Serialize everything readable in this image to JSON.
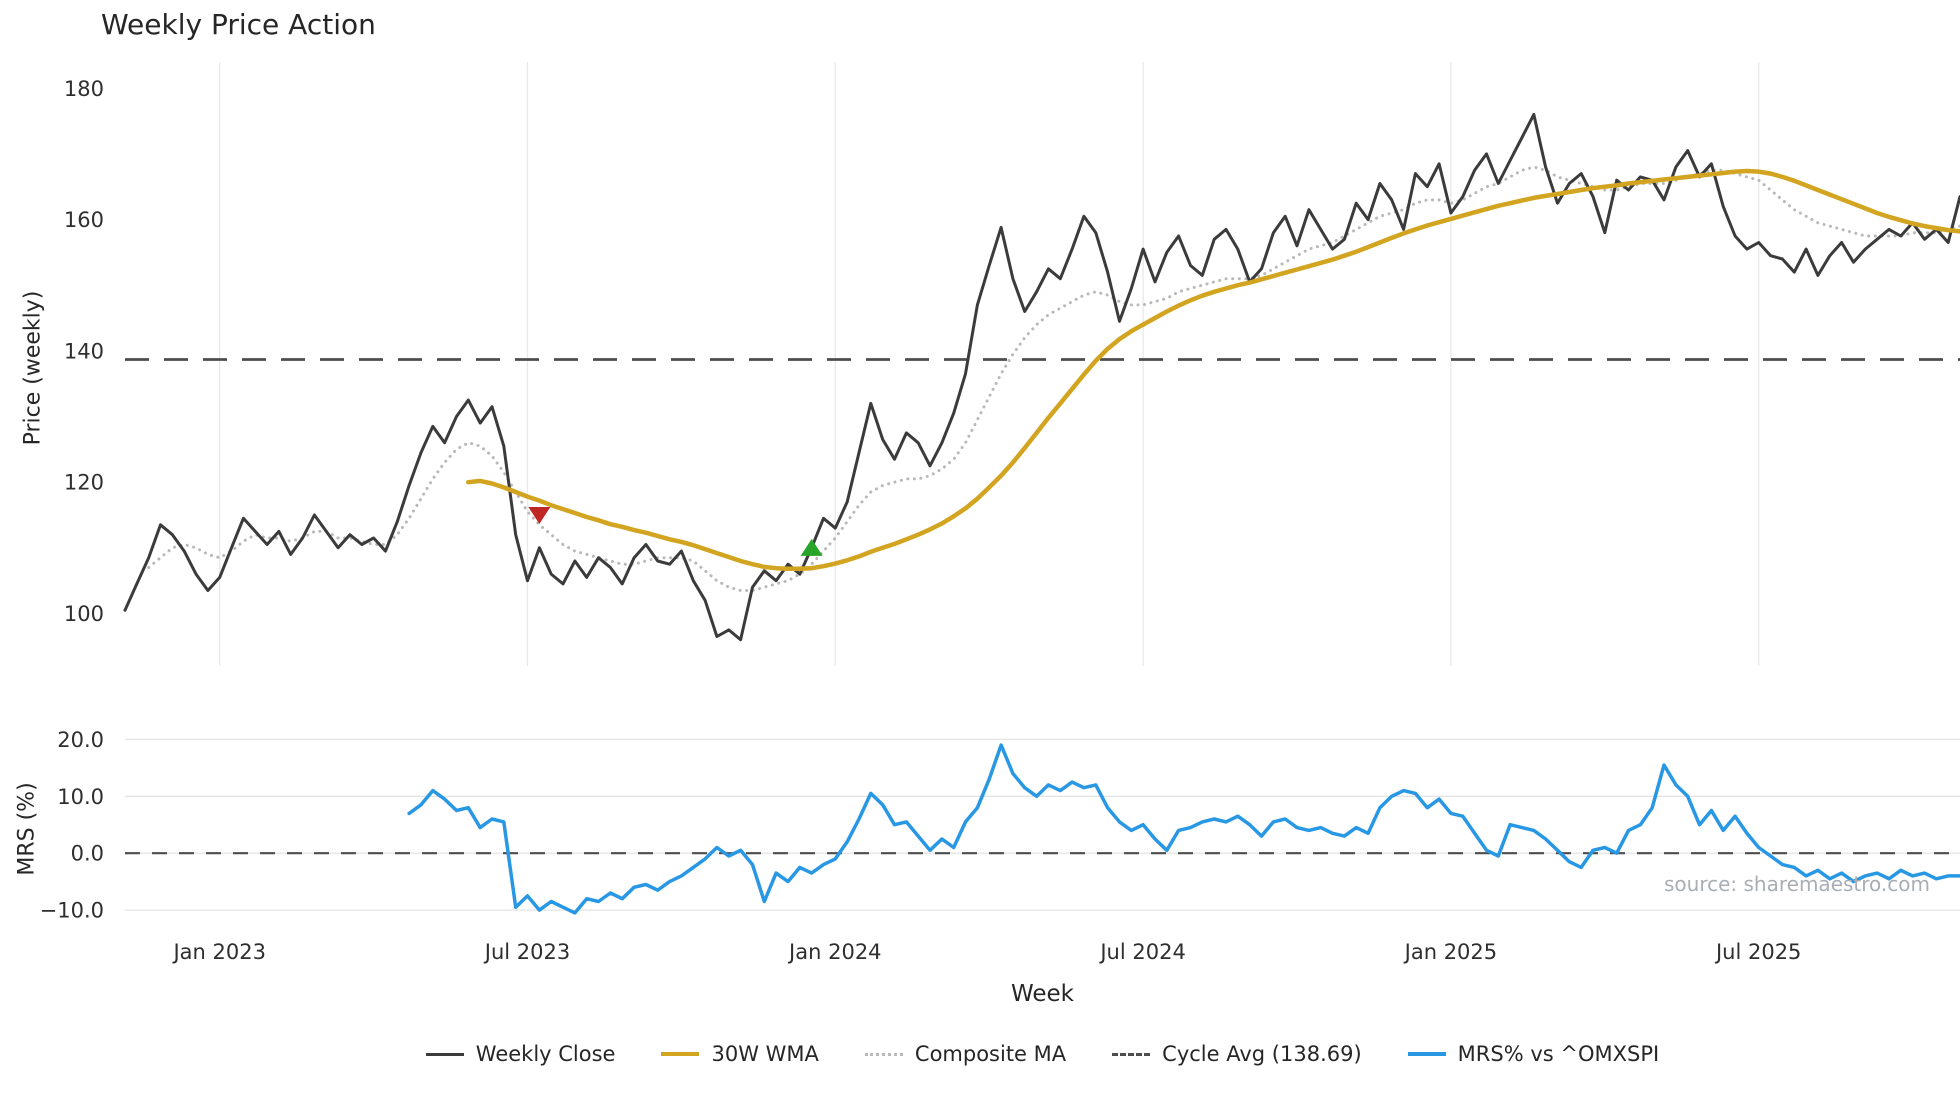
{
  "source_note": "source: sharemaestro.com",
  "legend": {
    "items": [
      {
        "label": "Weekly Close",
        "color": "#3b3b3b",
        "style": "solid"
      },
      {
        "label": "30W WMA",
        "color": "#d2a41f",
        "style": "solid"
      },
      {
        "label": "Composite MA",
        "color": "#b9b9b9",
        "style": "dotted"
      },
      {
        "label": "Cycle Avg (138.69)",
        "color": "#4d4d4d",
        "style": "dashed"
      },
      {
        "label": "MRS% vs ^OMXSPI",
        "color": "#2897e4",
        "style": "solid"
      }
    ]
  },
  "chart_data": [
    {
      "type": "line",
      "panel": "price",
      "title": "Weekly Price Action",
      "ylabel": "Price (weekly)",
      "ylim": [
        92,
        184
      ],
      "yticks": [
        100,
        120,
        140,
        160,
        180
      ],
      "grid": "vertical-only",
      "cycle_avg": {
        "label": "Cycle Avg (138.69)",
        "value": 138.69,
        "style": "dashed",
        "color": "#4d4d4d"
      },
      "x_axis": {
        "unit": "week",
        "total_weeks": 156,
        "ticks": [
          {
            "week": 8,
            "label": "Jan 2023"
          },
          {
            "week": 34,
            "label": "Jul 2023"
          },
          {
            "week": 60,
            "label": "Jan 2024"
          },
          {
            "week": 86,
            "label": "Jul 2024"
          },
          {
            "week": 112,
            "label": "Jan 2025"
          },
          {
            "week": 138,
            "label": "Jul 2025"
          }
        ]
      },
      "series": [
        {
          "name": "Weekly Close",
          "color": "#3b3b3b",
          "style": "solid",
          "width": 3,
          "start_week": 0,
          "values": [
            100.5,
            104.5,
            108.5,
            113.5,
            112,
            109.5,
            106,
            103.5,
            105.5,
            110,
            114.5,
            112.5,
            110.5,
            112.5,
            109,
            111.5,
            115,
            112.5,
            110,
            112,
            110.5,
            111.5,
            109.5,
            114,
            119.5,
            124.5,
            128.5,
            126,
            130,
            132.5,
            129,
            131.5,
            125.5,
            112,
            105,
            110,
            106,
            104.5,
            108,
            105.5,
            108.5,
            107,
            104.5,
            108.5,
            110.5,
            108,
            107.5,
            109.5,
            105,
            102,
            96.5,
            97.5,
            96,
            104,
            106.5,
            105,
            107.5,
            106,
            110,
            114.5,
            113,
            117,
            124.5,
            132,
            126.5,
            123.5,
            127.5,
            126,
            122.5,
            126,
            130.5,
            136.5,
            147,
            153,
            158.8,
            151,
            146,
            149,
            152.5,
            151,
            155.5,
            160.5,
            158,
            152,
            144.5,
            149.5,
            155.5,
            150.5,
            155,
            157.5,
            153,
            151.5,
            157,
            158.5,
            155.5,
            150.5,
            152.5,
            158,
            160.5,
            156,
            161.5,
            158.5,
            155.5,
            157,
            162.5,
            160,
            165.5,
            163,
            158.5,
            167,
            165,
            168.5,
            161,
            163.5,
            167.5,
            170,
            165.5,
            169,
            172.5,
            176,
            168,
            162.5,
            165.5,
            167,
            163.5,
            158,
            166,
            164.5,
            166.5,
            166,
            163,
            168,
            170.5,
            166.5,
            168.5,
            162,
            157.5,
            155.5,
            156.5,
            154.5,
            154,
            152,
            155.5,
            151.5,
            154.5,
            156.5,
            153.5,
            155.5,
            157,
            158.5,
            157.5,
            159.5,
            157,
            158.5,
            156.5,
            163.5
          ]
        },
        {
          "name": "30W WMA",
          "color": "#d2a41f",
          "style": "solid",
          "width": 4.5,
          "start_week": 29,
          "values": [
            120,
            120.2,
            119.8,
            119.2,
            118.5,
            117.8,
            117.2,
            116.5,
            115.9,
            115.3,
            114.7,
            114.2,
            113.6,
            113.2,
            112.7,
            112.3,
            111.8,
            111.3,
            110.9,
            110.4,
            109.8,
            109.2,
            108.6,
            108,
            107.5,
            107.1,
            106.9,
            106.8,
            106.8,
            106.9,
            107.2,
            107.6,
            108.1,
            108.7,
            109.4,
            110,
            110.6,
            111.3,
            112,
            112.8,
            113.7,
            114.8,
            116,
            117.5,
            119.2,
            121,
            123,
            125.2,
            127.5,
            129.8,
            132,
            134.2,
            136.4,
            138.5,
            140.3,
            141.8,
            143,
            144,
            145,
            146,
            146.9,
            147.7,
            148.4,
            149,
            149.5,
            150,
            150.4,
            150.9,
            151.4,
            151.9,
            152.4,
            152.9,
            153.4,
            153.9,
            154.5,
            155.1,
            155.8,
            156.5,
            157.2,
            157.9,
            158.5,
            159.1,
            159.6,
            160.1,
            160.6,
            161.1,
            161.6,
            162.1,
            162.5,
            162.9,
            163.3,
            163.6,
            163.9,
            164.2,
            164.5,
            164.8,
            165,
            165.2,
            165.5,
            165.7,
            165.9,
            166.1,
            166.3,
            166.5,
            166.7,
            166.9,
            167.1,
            167.3,
            167.4,
            167.3,
            167,
            166.5,
            165.9,
            165.2,
            164.5,
            163.8,
            163.1,
            162.4,
            161.7,
            161,
            160.4,
            159.9,
            159.4,
            159,
            158.7,
            158.4,
            158.2
          ]
        },
        {
          "name": "Composite MA",
          "color": "#b9b9b9",
          "style": "dotted",
          "width": 3,
          "start_week": 2,
          "values": [
            107,
            108.5,
            110,
            110.5,
            110,
            109,
            108.5,
            109.5,
            111,
            112,
            111.5,
            111.5,
            111,
            111.5,
            112.5,
            112.5,
            111.5,
            111.5,
            111,
            110.5,
            110.5,
            112,
            114.5,
            117.5,
            120.5,
            123,
            125,
            126,
            125.5,
            124,
            121.5,
            118.5,
            115.5,
            113.5,
            112,
            110.5,
            109.5,
            109,
            108.5,
            108,
            107.5,
            107.5,
            108,
            108.5,
            108.5,
            108.5,
            108,
            106.5,
            105,
            104,
            103.5,
            103.5,
            104,
            104.5,
            105,
            106,
            107.5,
            109.5,
            111.5,
            114,
            116.5,
            118.5,
            119.5,
            120,
            120.5,
            120.5,
            121,
            122,
            123.5,
            126,
            129.5,
            133,
            136.5,
            139.5,
            142,
            144,
            145.5,
            146.5,
            147.5,
            148.5,
            149,
            148.5,
            147.5,
            147,
            147,
            147.5,
            148,
            149,
            149.5,
            150,
            150.5,
            151,
            151,
            151,
            151.5,
            152.5,
            153.5,
            154.5,
            155.5,
            156,
            156.5,
            157.5,
            158.5,
            159.5,
            160.5,
            161,
            161.5,
            162.5,
            163,
            163,
            162.5,
            163,
            164,
            165,
            165.5,
            166.5,
            167.5,
            168,
            167.5,
            166.5,
            166,
            165.5,
            165,
            164.5,
            164.5,
            165,
            165.5,
            165.5,
            165.5,
            166,
            166.5,
            167,
            167.5,
            167.5,
            167,
            166.5,
            166,
            164.5,
            163,
            161.5,
            160.5,
            159.5,
            159,
            158.5,
            158,
            157.5,
            157.5,
            157.5,
            157.5,
            158,
            158,
            158,
            158.5,
            159
          ]
        }
      ],
      "markers": [
        {
          "name": "sell-signal",
          "shape": "triangle-down",
          "color": "#bf2626",
          "week": 35,
          "value": 115
        },
        {
          "name": "buy-signal",
          "shape": "triangle-up",
          "color": "#28a428",
          "week": 58,
          "value": 110
        }
      ]
    },
    {
      "type": "line",
      "panel": "mrs",
      "ylabel": "MRS (%)",
      "xlabel": "Week",
      "ylim": [
        -13.5,
        22
      ],
      "yticks": [
        -10,
        0,
        10,
        20
      ],
      "zero_line": {
        "value": 0,
        "style": "dashed",
        "color": "#4d4d4d"
      },
      "series": [
        {
          "name": "MRS% vs ^OMXSPI",
          "color": "#2897e4",
          "style": "solid",
          "width": 3.5,
          "start_week": 24,
          "values": [
            7,
            8.5,
            11,
            9.5,
            7.5,
            8,
            4.5,
            6,
            5.5,
            -9.5,
            -7.5,
            -10,
            -8.5,
            -9.5,
            -10.5,
            -8,
            -8.5,
            -7,
            -8,
            -6,
            -5.5,
            -6.5,
            -5,
            -4,
            -2.5,
            -1,
            1,
            -0.5,
            0.5,
            -2,
            -8.5,
            -3.5,
            -5,
            -2.5,
            -3.5,
            -2,
            -1,
            2,
            6,
            10.5,
            8.5,
            5,
            5.5,
            3,
            0.5,
            2.5,
            1,
            5.5,
            8,
            13,
            19,
            14,
            11.5,
            10,
            12,
            11,
            12.5,
            11.5,
            12,
            8,
            5.5,
            4,
            5,
            2.5,
            0.5,
            4,
            4.5,
            5.5,
            6,
            5.5,
            6.5,
            5,
            3,
            5.5,
            6,
            4.5,
            4,
            4.5,
            3.5,
            3,
            4.5,
            3.5,
            8,
            10,
            11,
            10.5,
            8,
            9.5,
            7,
            6.5,
            3.5,
            0.5,
            -0.5,
            5,
            4.5,
            4,
            2.5,
            0.5,
            -1.5,
            -2.5,
            0.5,
            1,
            0,
            4,
            5,
            8,
            15.5,
            12,
            10,
            5,
            7.5,
            4,
            6.5,
            3.5,
            1,
            -0.5,
            -2,
            -2.5,
            -4,
            -3,
            -4.5,
            -3.5,
            -5,
            -4,
            -3.5,
            -4.5,
            -3,
            -4,
            -3.5,
            -4.5,
            -4,
            -4
          ]
        }
      ]
    }
  ]
}
